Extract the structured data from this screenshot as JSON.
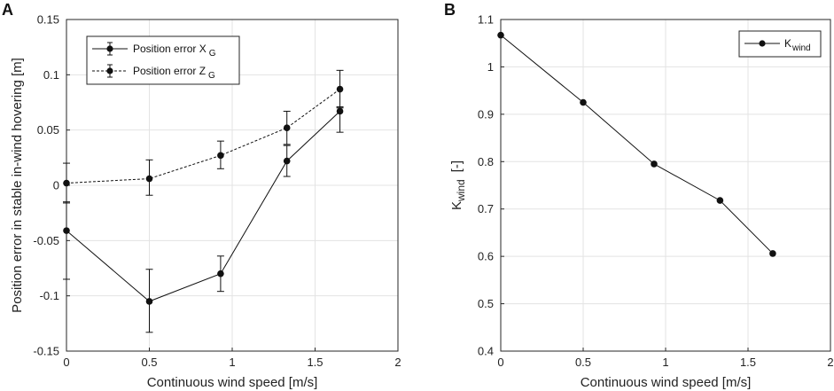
{
  "chart_data": [
    {
      "panel": "A",
      "type": "line",
      "xlabel": "Continuous wind speed [m/s]",
      "ylabel": "Position error in stable in-wind hovering [m]",
      "xlim": [
        0,
        2
      ],
      "ylim": [
        -0.15,
        0.15
      ],
      "xticks": [
        "0",
        "0.5",
        "1",
        "1.5",
        "2"
      ],
      "yticks": [
        "-0.15",
        "-0.1",
        "-0.05",
        "0",
        "0.05",
        "0.1",
        "0.15"
      ],
      "grid": true,
      "legend_position": "top-left",
      "x": [
        0,
        0.5,
        0.93,
        1.33,
        1.65
      ],
      "series": [
        {
          "name": "Position error X",
          "subscript": "G",
          "style": "solid",
          "values": [
            -0.041,
            -0.105,
            -0.08,
            0.022,
            0.067
          ],
          "err_low": [
            -0.085,
            -0.133,
            -0.096,
            0.008,
            0.048
          ],
          "err_high": [
            -0.015,
            -0.076,
            -0.064,
            0.036,
            0.071
          ]
        },
        {
          "name": "Position error Z",
          "subscript": "G",
          "style": "dashed",
          "values": [
            0.002,
            0.006,
            0.027,
            0.052,
            0.087
          ],
          "err_low": [
            -0.016,
            -0.009,
            0.015,
            0.037,
            0.07
          ],
          "err_high": [
            0.02,
            0.023,
            0.04,
            0.067,
            0.104
          ]
        }
      ]
    },
    {
      "panel": "B",
      "type": "line",
      "xlabel": "Continuous wind speed [m/s]",
      "ylabel_main": "K",
      "ylabel_sub": "wind",
      "ylabel_unit": "[-]",
      "xlim": [
        0,
        2
      ],
      "ylim": [
        0.4,
        1.1
      ],
      "xticks": [
        "0",
        "0.5",
        "1",
        "1.5",
        "2"
      ],
      "yticks": [
        "0.4",
        "0.5",
        "0.6",
        "0.7",
        "0.8",
        "0.9",
        "1",
        "1.1"
      ],
      "grid": true,
      "legend_position": "top-right",
      "x": [
        0,
        0.5,
        0.93,
        1.33,
        1.65
      ],
      "series": [
        {
          "name": "K",
          "subscript": "wind",
          "style": "solid",
          "values": [
            1.067,
            0.925,
            0.795,
            0.718,
            0.606
          ]
        }
      ]
    }
  ]
}
